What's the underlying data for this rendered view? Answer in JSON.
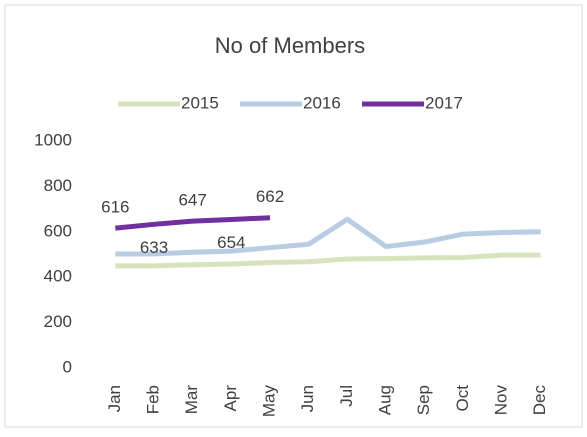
{
  "chart_data": {
    "type": "line",
    "title": "No of Members",
    "categories": [
      "Jan",
      "Feb",
      "Mar",
      "Apr",
      "May",
      "Jun",
      "Jul",
      "Aug",
      "Sep",
      "Oct",
      "Nov",
      "Dec"
    ],
    "series": [
      {
        "name": "2015",
        "color": "#d6e4bd",
        "values": [
          450,
          450,
          455,
          458,
          465,
          468,
          480,
          482,
          485,
          487,
          497,
          497
        ]
      },
      {
        "name": "2016",
        "color": "#b8cce4",
        "values": [
          502,
          503,
          510,
          515,
          530,
          545,
          655,
          535,
          555,
          590,
          597,
          600
        ]
      },
      {
        "name": "2017",
        "color": "#7030a0",
        "values": [
          616,
          633,
          647,
          654,
          662,
          null,
          null,
          null,
          null,
          null,
          null,
          null
        ],
        "show_labels": true
      }
    ],
    "ylim": [
      0,
      1000
    ],
    "yticks": [
      0,
      200,
      400,
      600,
      800,
      1000
    ],
    "grid": false,
    "legend": "top"
  }
}
